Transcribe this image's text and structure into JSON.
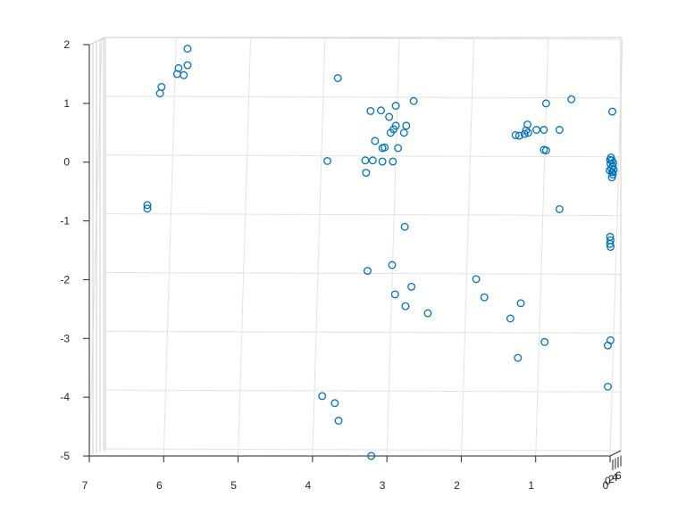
{
  "chart_data": {
    "type": "scatter",
    "title": "",
    "xlabel": "",
    "ylabel": "",
    "xlim": [
      0,
      7
    ],
    "ylim": [
      -5,
      2
    ],
    "x_reversed": true,
    "grid": true,
    "x_ticks": [
      "7",
      "6",
      "5",
      "4",
      "3",
      "2",
      "1",
      "0"
    ],
    "y_ticks": [
      "2",
      "1",
      "0",
      "-1",
      "-2",
      "-3",
      "-4",
      "-5"
    ],
    "depth_tick_labels": [
      "0",
      "2",
      "4",
      "6"
    ],
    "marker_color": "#0072bd",
    "marker": "circle-open",
    "series": [
      {
        "points": [
          [
            5.68,
            1.93
          ],
          [
            5.68,
            1.65
          ],
          [
            5.8,
            1.6
          ],
          [
            5.82,
            1.5
          ],
          [
            5.73,
            1.48
          ],
          [
            6.03,
            1.28
          ],
          [
            6.05,
            1.17
          ],
          [
            6.22,
            -0.73
          ],
          [
            6.22,
            -0.79
          ],
          [
            3.66,
            1.43
          ],
          [
            3.8,
            0.02
          ],
          [
            3.22,
            0.87
          ],
          [
            3.08,
            0.88
          ],
          [
            2.97,
            0.77
          ],
          [
            2.88,
            0.96
          ],
          [
            2.64,
            1.04
          ],
          [
            2.88,
            0.62
          ],
          [
            2.74,
            0.62
          ],
          [
            2.91,
            0.56
          ],
          [
            2.95,
            0.5
          ],
          [
            2.77,
            0.5
          ],
          [
            3.16,
            0.36
          ],
          [
            3.03,
            0.25
          ],
          [
            3.06,
            0.24
          ],
          [
            2.85,
            0.24
          ],
          [
            3.29,
            0.03
          ],
          [
            3.19,
            0.03
          ],
          [
            3.06,
            0.01
          ],
          [
            2.92,
            0.01
          ],
          [
            3.28,
            -0.18
          ],
          [
            2.76,
            -1.1
          ],
          [
            3.26,
            -1.85
          ],
          [
            2.93,
            -1.75
          ],
          [
            2.67,
            -2.12
          ],
          [
            2.89,
            -2.25
          ],
          [
            2.75,
            -2.45
          ],
          [
            2.45,
            -2.57
          ],
          [
            3.87,
            -3.98
          ],
          [
            3.7,
            -4.1
          ],
          [
            3.65,
            -4.4
          ],
          [
            3.21,
            -5.0
          ],
          [
            0.52,
            1.07
          ],
          [
            0.86,
            1.0
          ],
          [
            1.11,
            0.64
          ],
          [
            1.13,
            0.54
          ],
          [
            1.1,
            0.5
          ],
          [
            1.27,
            0.46
          ],
          [
            1.22,
            0.45
          ],
          [
            1.15,
            0.48
          ],
          [
            0.99,
            0.55
          ],
          [
            0.89,
            0.55
          ],
          [
            0.68,
            0.55
          ],
          [
            0.89,
            0.21
          ],
          [
            0.86,
            0.2
          ],
          [
            0.68,
            -0.8
          ],
          [
            1.8,
            -1.99
          ],
          [
            1.69,
            -2.3
          ],
          [
            1.2,
            -2.4
          ],
          [
            1.34,
            -2.66
          ],
          [
            1.24,
            -3.33
          ],
          [
            0.88,
            -3.06
          ]
        ]
      },
      {
        "name_shown": false,
        "points_near_zero": [
          [
            0.03,
            0.86
          ],
          [
            0.0,
            0.08
          ],
          [
            0.02,
            0.03
          ],
          [
            -0.02,
            0.04
          ],
          [
            0.05,
            -0.01
          ],
          [
            -0.01,
            -0.03
          ],
          [
            0.04,
            -0.07
          ],
          [
            0.01,
            -0.11
          ],
          [
            -0.03,
            -0.14
          ],
          [
            0.03,
            -0.17
          ],
          [
            0.06,
            -0.13
          ],
          [
            0.04,
            -0.21
          ],
          [
            0.02,
            -0.26
          ],
          [
            -0.02,
            -1.27
          ],
          [
            -0.01,
            -1.33
          ],
          [
            -0.02,
            -1.39
          ],
          [
            -0.01,
            -1.44
          ],
          [
            -0.01,
            -3.03
          ],
          [
            -0.07,
            -3.12
          ],
          [
            -0.07,
            -3.82
          ]
        ]
      }
    ]
  }
}
